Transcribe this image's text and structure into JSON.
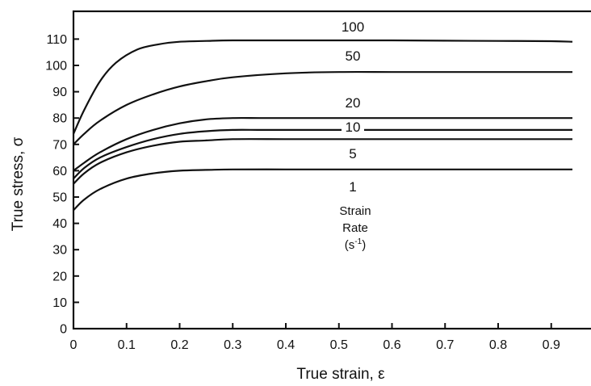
{
  "chart_data": {
    "type": "line",
    "title": "",
    "xlabel": "True strain, ε",
    "ylabel": "True stress, σ",
    "xlim": [
      0,
      0.95
    ],
    "ylim": [
      0,
      120
    ],
    "x_ticks": [
      "0",
      "0.1",
      "0.2",
      "0.3",
      "0.4",
      "0.5",
      "0.6",
      "0.7",
      "0.8",
      "0.9"
    ],
    "y_ticks": [
      "0",
      "10",
      "20",
      "30",
      "40",
      "50",
      "60",
      "70",
      "80",
      "90",
      "100",
      "110"
    ],
    "grid": false,
    "legend": "none",
    "series": [
      {
        "name": "100",
        "x": [
          0,
          0.02,
          0.05,
          0.08,
          0.12,
          0.16,
          0.2,
          0.25,
          0.3,
          0.4,
          0.5,
          0.6,
          0.7,
          0.8,
          0.9,
          0.94
        ],
        "y": [
          74,
          83,
          94,
          101,
          106,
          108,
          109,
          109.3,
          109.5,
          109.5,
          109.5,
          109.5,
          109.4,
          109.3,
          109.2,
          109
        ]
      },
      {
        "name": "50",
        "x": [
          0,
          0.02,
          0.05,
          0.1,
          0.15,
          0.2,
          0.25,
          0.3,
          0.4,
          0.5,
          0.6,
          0.7,
          0.8,
          0.9,
          0.94
        ],
        "y": [
          70,
          74,
          79,
          85,
          89,
          92,
          94,
          95.5,
          97,
          97.5,
          97.5,
          97.5,
          97.5,
          97.5,
          97.5
        ]
      },
      {
        "name": "20",
        "x": [
          0,
          0.02,
          0.05,
          0.1,
          0.15,
          0.2,
          0.25,
          0.3,
          0.35,
          0.4,
          0.5,
          0.6,
          0.7,
          0.8,
          0.9,
          0.94
        ],
        "y": [
          60,
          63,
          67,
          72,
          75.5,
          78,
          79.5,
          80,
          80,
          80,
          80,
          80,
          80,
          80,
          80,
          80
        ]
      },
      {
        "name": "10",
        "x": [
          0,
          0.02,
          0.05,
          0.1,
          0.15,
          0.2,
          0.25,
          0.3,
          0.35,
          0.4,
          0.5,
          0.6,
          0.7,
          0.8,
          0.9,
          0.94
        ],
        "y": [
          57,
          61,
          65,
          69,
          72,
          74,
          75,
          75.5,
          75.5,
          75.5,
          75.5,
          75.5,
          75.5,
          75.5,
          75.5,
          75.5
        ]
      },
      {
        "name": "5",
        "x": [
          0,
          0.02,
          0.05,
          0.1,
          0.15,
          0.2,
          0.25,
          0.3,
          0.4,
          0.5,
          0.6,
          0.7,
          0.8,
          0.9,
          0.94
        ],
        "y": [
          55,
          59,
          63,
          67,
          69.5,
          71,
          71.5,
          72,
          72,
          72,
          72,
          72,
          72,
          72,
          72
        ]
      },
      {
        "name": "1",
        "x": [
          0,
          0.02,
          0.05,
          0.1,
          0.15,
          0.2,
          0.25,
          0.3,
          0.4,
          0.5,
          0.6,
          0.7,
          0.8,
          0.9,
          0.94
        ],
        "y": [
          45,
          49,
          53,
          57,
          59,
          60,
          60.3,
          60.5,
          60.5,
          60.5,
          60.5,
          60.5,
          60.5,
          60.5,
          60.5
        ]
      }
    ],
    "annotation": {
      "line1": "Strain",
      "line2": "Rate",
      "line3_base": "(s",
      "line3_sup": "-1",
      "line3_end": ")"
    }
  }
}
